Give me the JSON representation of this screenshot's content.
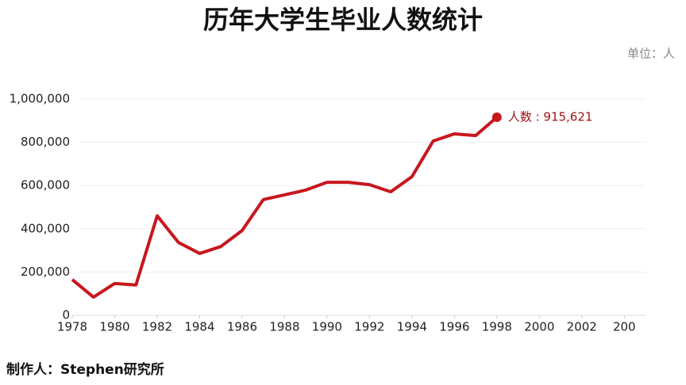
{
  "chart_data": {
    "type": "line",
    "title": "历年大学生毕业人数统计",
    "unit": "单位：人",
    "footer": "制作人：Stephen研究所",
    "x": [
      1978,
      1979,
      1980,
      1981,
      1982,
      1983,
      1984,
      1985,
      1986,
      1987,
      1988,
      1989,
      1990,
      1991,
      1992,
      1993,
      1994,
      1995,
      1996,
      1997,
      1998
    ],
    "series": [
      {
        "name": "人数",
        "color": "#c8161d",
        "values": [
          165000,
          84000,
          147000,
          140000,
          460000,
          337000,
          286000,
          318000,
          392000,
          535000,
          557000,
          579000,
          615000,
          615000,
          604000,
          571000,
          641000,
          806000,
          839000,
          831000,
          915621
        ],
        "value_labels": [
          null,
          null,
          null,
          null,
          null,
          null,
          null,
          null,
          null,
          null,
          null,
          null,
          null,
          null,
          null,
          null,
          null,
          null,
          null,
          null,
          "人数 : 915,621"
        ]
      }
    ],
    "xlim": [
      1978,
      2005
    ],
    "xticks": [
      1978,
      1980,
      1982,
      1984,
      1986,
      1988,
      1990,
      1992,
      1994,
      1996,
      1998,
      2000,
      2002,
      {
        "value": 2004,
        "label": "200"
      }
    ],
    "ylim": [
      0,
      1000000
    ],
    "yticks": [
      0,
      {
        "value": 200000,
        "label": "200,000"
      },
      {
        "value": 400000,
        "label": "400,000"
      },
      {
        "value": 600000,
        "label": "600,000"
      },
      {
        "value": 800000,
        "label": "800,000"
      },
      {
        "value": 1000000,
        "label": "1,000,000"
      }
    ],
    "grid": true
  }
}
